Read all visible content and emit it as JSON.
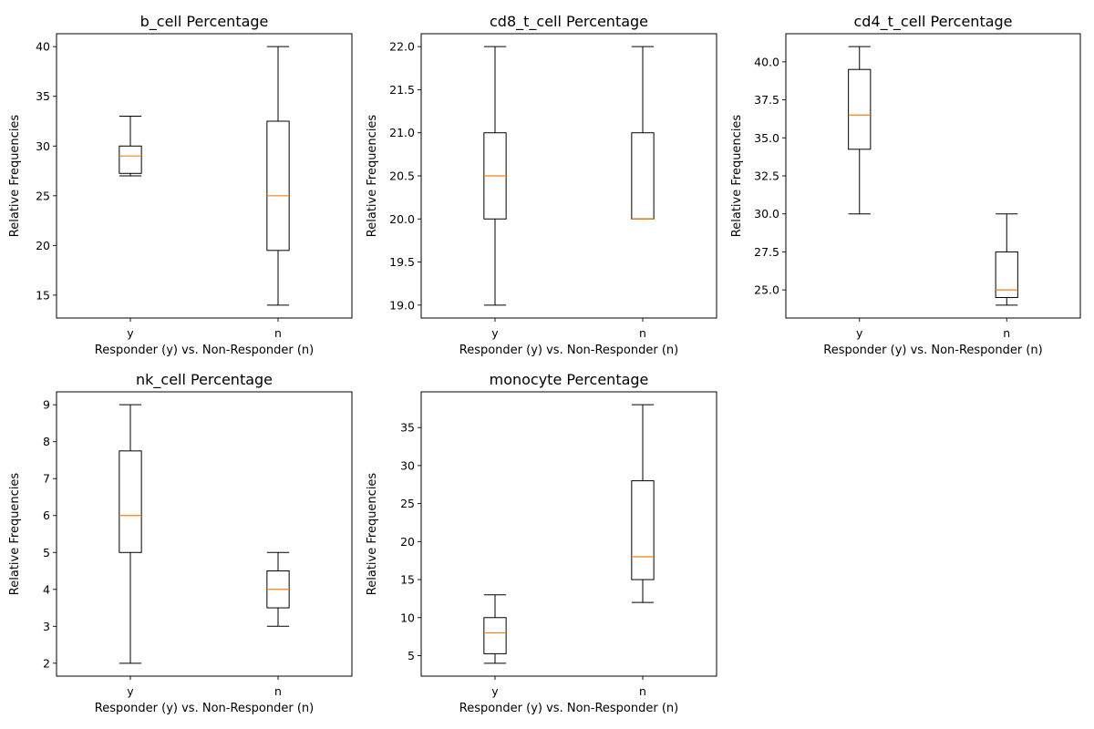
{
  "chart_data": [
    {
      "type": "box",
      "title": "b_cell Percentage",
      "xlabel": "Responder (y) vs. Non-Responder (n)",
      "ylabel": "Relative Frequencies",
      "categories": [
        "y",
        "n"
      ],
      "ylim": [
        12.7,
        41.3
      ],
      "yticks": [
        "15",
        "20",
        "25",
        "30",
        "35",
        "40"
      ],
      "boxes": [
        {
          "min": 27,
          "q1": 27.25,
          "median": 29,
          "q3": 30,
          "max": 33
        },
        {
          "min": 14,
          "q1": 19.5,
          "median": 25,
          "q3": 32.5,
          "max": 40
        }
      ]
    },
    {
      "type": "box",
      "title": "cd8_t_cell Percentage",
      "xlabel": "Responder (y) vs. Non-Responder (n)",
      "ylabel": "Relative Frequencies",
      "categories": [
        "y",
        "n"
      ],
      "ylim": [
        18.85,
        22.15
      ],
      "yticks": [
        "19.0",
        "19.5",
        "20.0",
        "20.5",
        "21.0",
        "21.5",
        "22.0"
      ],
      "boxes": [
        {
          "min": 19,
          "q1": 20,
          "median": 20.5,
          "q3": 21,
          "max": 22
        },
        {
          "min": 20,
          "q1": 20,
          "median": 20,
          "q3": 21,
          "max": 22
        }
      ]
    },
    {
      "type": "box",
      "title": "cd4_t_cell Percentage",
      "xlabel": "Responder (y) vs. Non-Responder (n)",
      "ylabel": "Relative Frequencies",
      "categories": [
        "y",
        "n"
      ],
      "ylim": [
        23.15,
        41.85
      ],
      "yticks": [
        "25.0",
        "27.5",
        "30.0",
        "32.5",
        "35.0",
        "37.5",
        "40.0"
      ],
      "boxes": [
        {
          "min": 30,
          "q1": 34.25,
          "median": 36.5,
          "q3": 39.5,
          "max": 41
        },
        {
          "min": 24,
          "q1": 24.5,
          "median": 25,
          "q3": 27.5,
          "max": 30
        }
      ]
    },
    {
      "type": "box",
      "title": "nk_cell Percentage",
      "xlabel": "Responder (y) vs. Non-Responder (n)",
      "ylabel": "Relative Frequencies",
      "categories": [
        "y",
        "n"
      ],
      "ylim": [
        1.65,
        9.35
      ],
      "yticks": [
        "2",
        "3",
        "4",
        "5",
        "6",
        "7",
        "8",
        "9"
      ],
      "boxes": [
        {
          "min": 2,
          "q1": 5,
          "median": 6,
          "q3": 7.75,
          "max": 9
        },
        {
          "min": 3,
          "q1": 3.5,
          "median": 4,
          "q3": 4.5,
          "max": 5
        }
      ]
    },
    {
      "type": "box",
      "title": "monocyte Percentage",
      "xlabel": "Responder (y) vs. Non-Responder (n)",
      "ylabel": "Relative Frequencies",
      "categories": [
        "y",
        "n"
      ],
      "ylim": [
        2.3,
        39.7
      ],
      "yticks": [
        "5",
        "10",
        "15",
        "20",
        "25",
        "30",
        "35"
      ],
      "boxes": [
        {
          "min": 4,
          "q1": 5.25,
          "median": 8,
          "q3": 10,
          "max": 13
        },
        {
          "min": 12,
          "q1": 15,
          "median": 18,
          "q3": 28,
          "max": 38
        }
      ]
    }
  ],
  "colors": {
    "median": "#ff7f0e",
    "box": "#000000",
    "axes": "#000000"
  }
}
